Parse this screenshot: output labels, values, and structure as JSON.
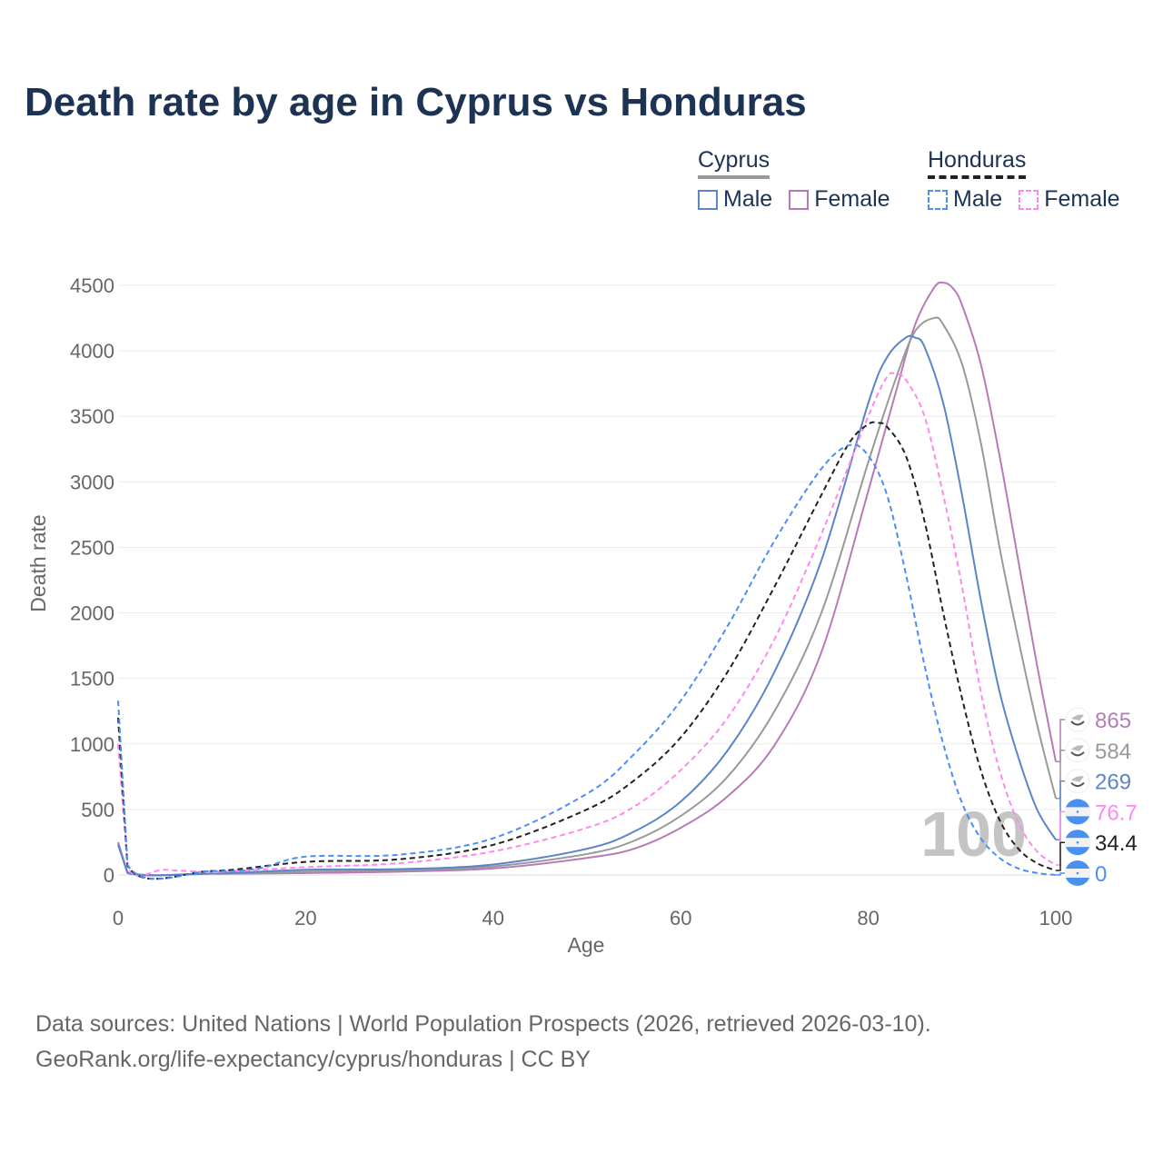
{
  "title": "Death rate by age in Cyprus vs Honduras",
  "legend": {
    "groups": [
      {
        "name": "Cyprus",
        "line_color": "#999999",
        "dashed": false,
        "items": [
          {
            "label": "Male",
            "color": "#5b84c9"
          },
          {
            "label": "Female",
            "color": "#b67bb7"
          }
        ]
      },
      {
        "name": "Honduras",
        "line_color": "#222222",
        "dashed": true,
        "items": [
          {
            "label": "Male",
            "color": "#4c8df6"
          },
          {
            "label": "Female",
            "color": "#ff88f0"
          }
        ]
      }
    ]
  },
  "footer": {
    "line1": "Data sources: United Nations | World Population Prospects (2026, retrieved 2026-03-10).",
    "line2": "GeoRank.org/life-expectancy/cyprus/honduras | CC BY"
  },
  "chart_data": {
    "type": "line",
    "title": "Death rate by age in Cyprus vs Honduras",
    "xlabel": "Age",
    "ylabel": "Death rate",
    "xlim": [
      0,
      100
    ],
    "ylim": [
      0,
      4500
    ],
    "xticks": [
      0,
      20,
      40,
      60,
      80,
      100
    ],
    "yticks": [
      0,
      500,
      1000,
      1500,
      2000,
      2500,
      3000,
      3500,
      4000,
      4500
    ],
    "grid": true,
    "watermark": "100",
    "series": [
      {
        "name": "Cyprus Female",
        "country": "Cyprus",
        "color": "#b67bb7",
        "dashed": false,
        "end_label": "865",
        "flag": "cyprus",
        "x": [
          0,
          1,
          10,
          20,
          30,
          40,
          50,
          55,
          60,
          65,
          70,
          75,
          80,
          83,
          85,
          87,
          88,
          89,
          90,
          92,
          94,
          96,
          98,
          100
        ],
        "y": [
          250,
          20,
          10,
          15,
          25,
          50,
          130,
          200,
          360,
          600,
          990,
          1700,
          2930,
          3700,
          4200,
          4480,
          4520,
          4480,
          4350,
          3900,
          3200,
          2400,
          1600,
          865
        ]
      },
      {
        "name": "Cyprus Total",
        "country": "Cyprus",
        "color": "#999999",
        "dashed": false,
        "end_label": "584",
        "flag": "cyprus",
        "x": [
          0,
          1,
          10,
          20,
          30,
          40,
          50,
          55,
          60,
          65,
          70,
          75,
          80,
          83,
          85,
          87,
          88,
          90,
          92,
          94,
          96,
          98,
          100
        ],
        "y": [
          240,
          15,
          10,
          25,
          35,
          65,
          160,
          260,
          450,
          750,
          1250,
          2000,
          3150,
          3800,
          4150,
          4250,
          4200,
          3900,
          3300,
          2500,
          1800,
          1150,
          584
        ]
      },
      {
        "name": "Cyprus Male",
        "country": "Cyprus",
        "color": "#5b84c9",
        "dashed": false,
        "end_label": "269",
        "flag": "cyprus",
        "x": [
          0,
          1,
          10,
          20,
          30,
          40,
          50,
          55,
          60,
          65,
          70,
          75,
          80,
          82,
          84,
          85,
          86,
          88,
          90,
          92,
          94,
          96,
          98,
          100
        ],
        "y": [
          230,
          15,
          10,
          40,
          45,
          80,
          200,
          330,
          560,
          950,
          1550,
          2400,
          3600,
          3950,
          4100,
          4100,
          4030,
          3600,
          2900,
          2100,
          1400,
          900,
          500,
          269
        ]
      },
      {
        "name": "Honduras Female",
        "country": "Honduras",
        "color": "#ff88f0",
        "dashed": true,
        "end_label": "76.7",
        "flag": "honduras",
        "x": [
          0,
          1,
          5,
          10,
          15,
          20,
          30,
          40,
          50,
          55,
          60,
          65,
          70,
          75,
          80,
          82,
          83,
          84,
          86,
          88,
          90,
          92,
          94,
          96,
          98,
          100
        ],
        "y": [
          1000,
          70,
          40,
          25,
          40,
          60,
          90,
          180,
          360,
          520,
          800,
          1200,
          1800,
          2600,
          3500,
          3800,
          3820,
          3780,
          3500,
          2900,
          2200,
          1400,
          800,
          400,
          180,
          76.7
        ]
      },
      {
        "name": "Honduras Total",
        "country": "Honduras",
        "color": "#222222",
        "dashed": true,
        "end_label": "34.4",
        "flag": "honduras",
        "x": [
          0,
          1,
          10,
          20,
          30,
          40,
          50,
          55,
          60,
          65,
          70,
          75,
          78,
          80,
          81,
          82,
          84,
          86,
          88,
          90,
          92,
          94,
          96,
          98,
          100
        ],
        "y": [
          1200,
          70,
          30,
          100,
          120,
          230,
          500,
          720,
          1050,
          1550,
          2200,
          2900,
          3300,
          3440,
          3450,
          3420,
          3200,
          2700,
          2000,
          1350,
          800,
          420,
          200,
          90,
          34.4
        ]
      },
      {
        "name": "Honduras Male",
        "country": "Honduras",
        "color": "#4c8df6",
        "dashed": true,
        "end_label": "0",
        "flag": "honduras",
        "x": [
          0,
          1,
          10,
          15,
          20,
          30,
          40,
          50,
          55,
          60,
          65,
          70,
          75,
          78,
          80,
          82,
          84,
          86,
          88,
          90,
          92,
          94,
          96,
          98,
          100
        ],
        "y": [
          1330,
          80,
          30,
          50,
          140,
          155,
          280,
          620,
          920,
          1330,
          1900,
          2550,
          3100,
          3280,
          3200,
          2900,
          2300,
          1600,
          1000,
          550,
          280,
          130,
          50,
          15,
          0
        ]
      }
    ]
  }
}
